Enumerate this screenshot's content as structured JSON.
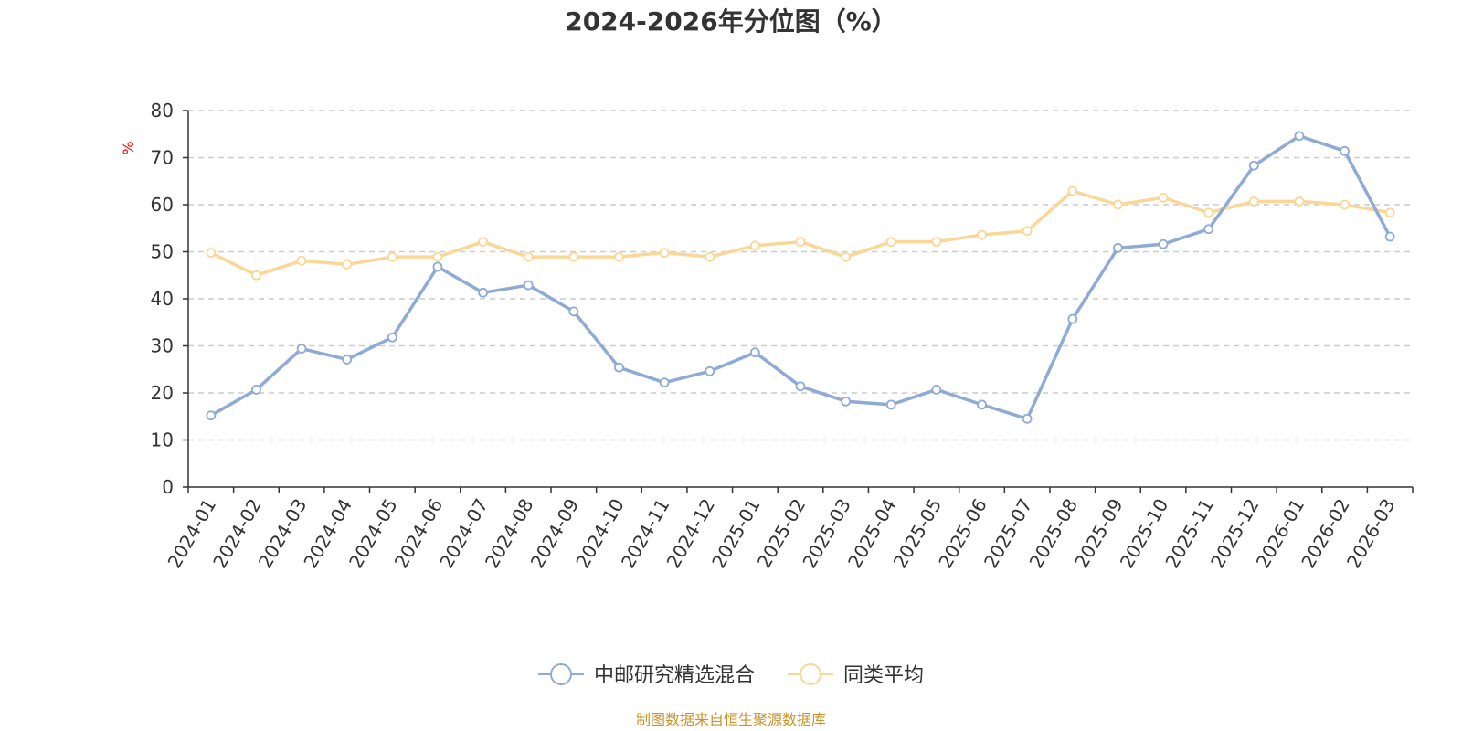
{
  "chart_data": {
    "type": "line",
    "title": "2024-2026年分位图（%）",
    "ylabel": "%",
    "xlabel": "",
    "ylim": [
      0,
      80
    ],
    "yticks": [
      0,
      10,
      20,
      30,
      40,
      50,
      60,
      70,
      80
    ],
    "grid": true,
    "legend_position": "bottom",
    "categories": [
      "2024-01",
      "2024-02",
      "2024-03",
      "2024-04",
      "2024-05",
      "2024-06",
      "2024-07",
      "2024-08",
      "2024-09",
      "2024-10",
      "2024-11",
      "2024-12",
      "2025-01",
      "2025-02",
      "2025-03",
      "2025-04",
      "2025-05",
      "2025-06",
      "2025-07",
      "2025-08",
      "2025-09",
      "2025-10",
      "2025-11",
      "2025-12",
      "2026-01",
      "2026-02",
      "2026-03"
    ],
    "series": [
      {
        "name": "中邮研究精选混合",
        "color": "#8eaad6",
        "values": [
          15.2,
          20.7,
          29.4,
          27.1,
          31.8,
          46.8,
          41.3,
          42.9,
          37.3,
          25.4,
          22.2,
          24.6,
          28.6,
          21.4,
          18.2,
          17.5,
          20.7,
          17.5,
          14.5,
          35.7,
          50.8,
          51.6,
          54.8,
          68.3,
          74.6,
          71.4,
          53.2
        ]
      },
      {
        "name": "同类平均",
        "color": "#fad797",
        "values": [
          49.8,
          45.0,
          48.1,
          47.3,
          48.9,
          48.9,
          52.1,
          48.9,
          48.9,
          48.9,
          49.8,
          48.9,
          51.3,
          52.1,
          48.9,
          52.1,
          52.1,
          53.6,
          54.4,
          62.9,
          60.0,
          61.5,
          58.3,
          60.7,
          60.7,
          60.0,
          58.3
        ]
      }
    ]
  },
  "footer": {
    "source": "制图数据来自恒生聚源数据库"
  }
}
